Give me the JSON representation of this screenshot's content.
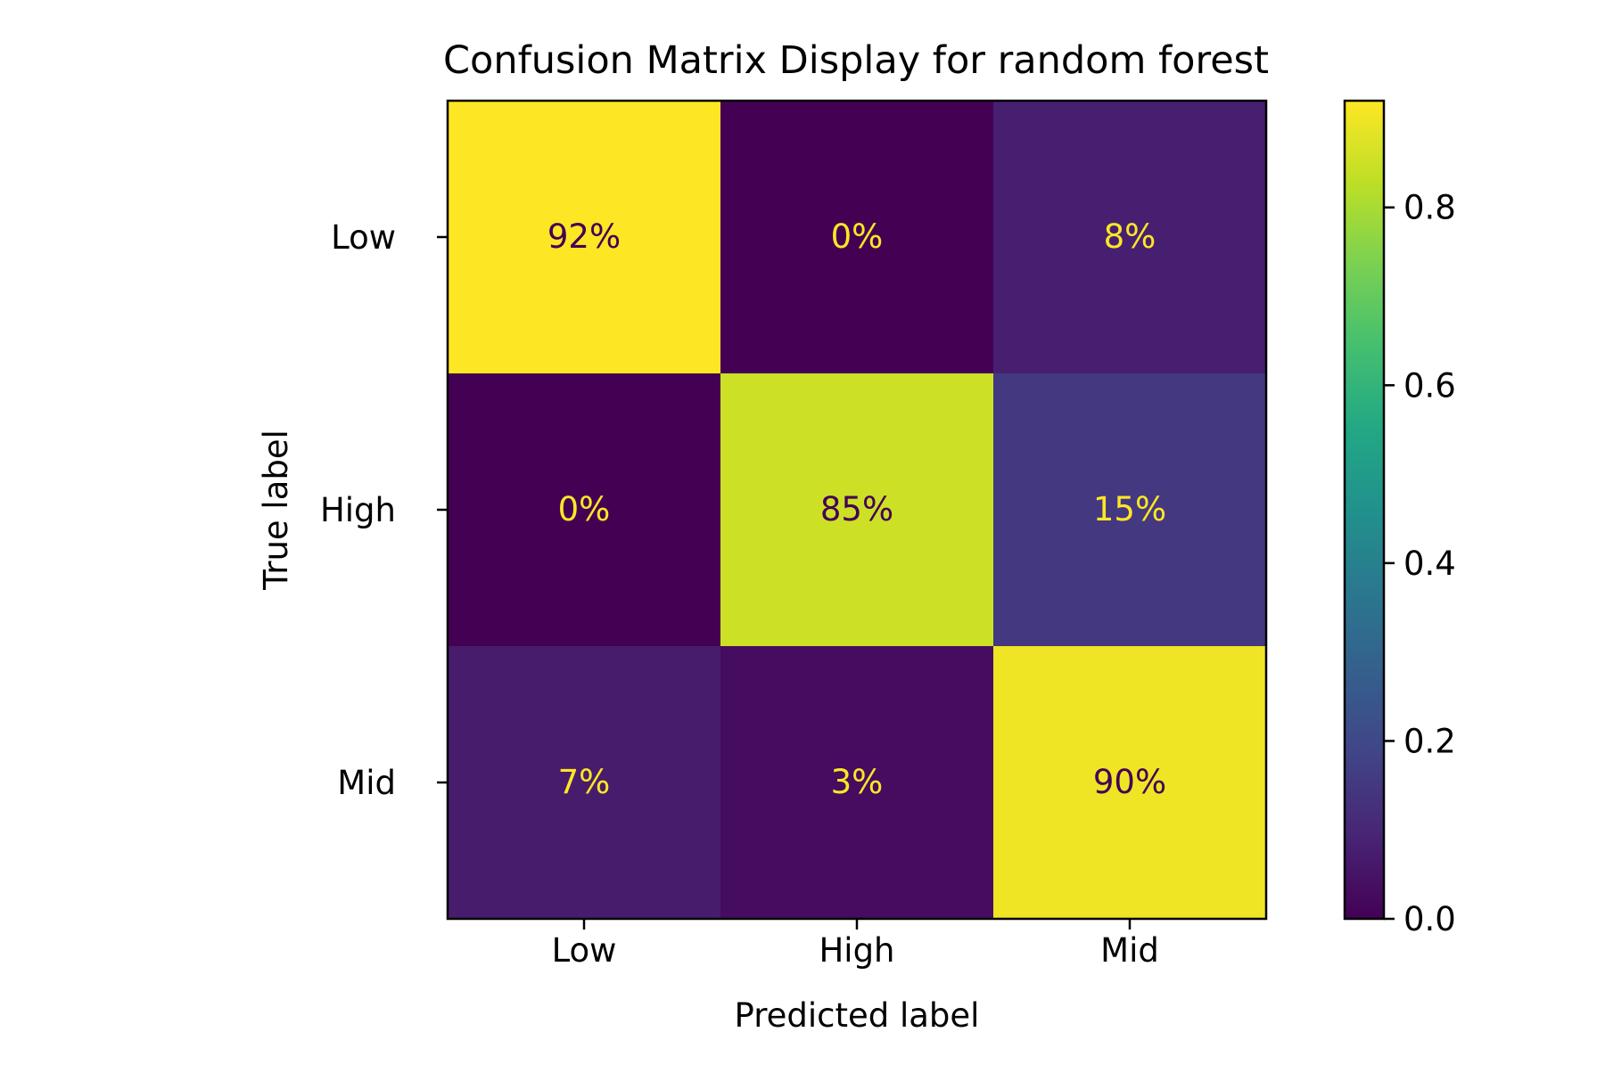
{
  "chart_data": {
    "type": "heatmap",
    "title": "Confusion Matrix Display for random forest",
    "xlabel": "Predicted label",
    "ylabel": "True label",
    "x_categories": [
      "Low",
      "High",
      "Mid"
    ],
    "y_categories": [
      "Low",
      "High",
      "Mid"
    ],
    "values": [
      [
        0.92,
        0.0,
        0.08
      ],
      [
        0.0,
        0.85,
        0.15
      ],
      [
        0.07,
        0.03,
        0.9
      ]
    ],
    "cell_labels": [
      [
        "92%",
        "0%",
        "8%"
      ],
      [
        "0%",
        "85%",
        "15%"
      ],
      [
        "7%",
        "3%",
        "90%"
      ]
    ],
    "colormap": "viridis",
    "color_range": [
      0.0,
      0.92
    ],
    "colorbar": {
      "ticks": [
        0.0,
        0.2,
        0.4,
        0.6,
        0.8
      ],
      "tick_labels": [
        "0.0",
        "0.2",
        "0.4",
        "0.6",
        "0.8"
      ]
    },
    "label_colors": {
      "dark_cell_text": "#fde725",
      "light_cell_text": "#440154"
    },
    "grid": false
  }
}
